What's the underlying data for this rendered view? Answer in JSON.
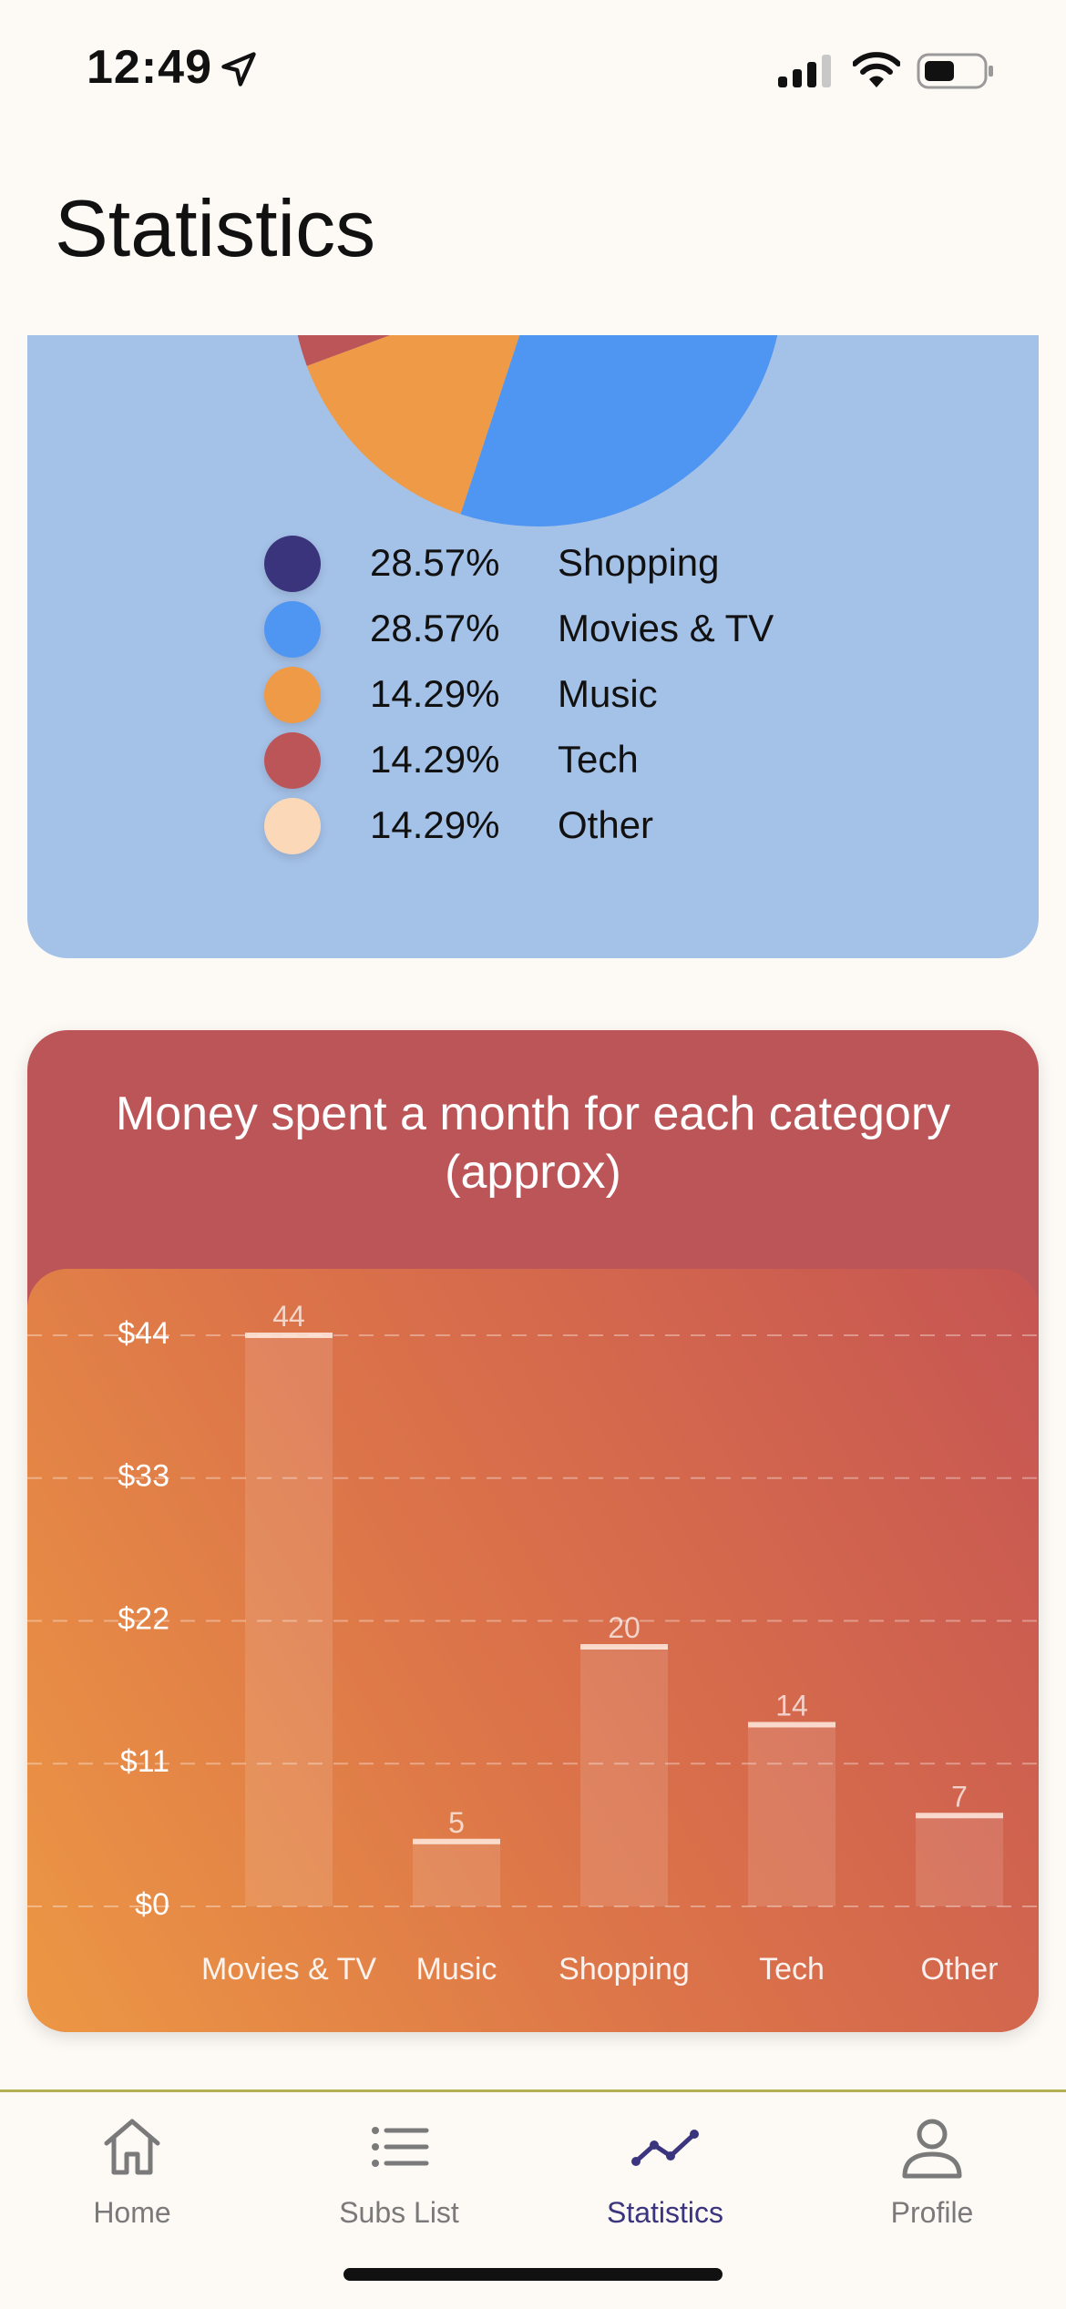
{
  "status_bar": {
    "time": "12:49",
    "location_icon": "location-arrow-icon",
    "signal_icon": "cellular-signal-icon",
    "wifi_icon": "wifi-icon",
    "battery_icon": "battery-icon"
  },
  "header": {
    "title": "Statistics"
  },
  "pie_legend": [
    {
      "percent": "28.57%",
      "label": "Shopping",
      "color": "#3a347c"
    },
    {
      "percent": "28.57%",
      "label": "Movies & TV",
      "color": "#4f95f2"
    },
    {
      "percent": "14.29%",
      "label": "Music",
      "color": "#ee9a46"
    },
    {
      "percent": "14.29%",
      "label": "Tech",
      "color": "#bc5558"
    },
    {
      "percent": "14.29%",
      "label": "Other",
      "color": "#fbd8b8"
    }
  ],
  "pie_chart": {
    "type": "pie",
    "slices": [
      {
        "label": "Shopping",
        "percent": 28.57,
        "color": "#3a347c"
      },
      {
        "label": "Movies & TV",
        "percent": 28.57,
        "color": "#4f95f2"
      },
      {
        "label": "Music",
        "percent": 14.29,
        "color": "#ee9a46"
      },
      {
        "label": "Tech",
        "percent": 14.29,
        "color": "#bc5558"
      },
      {
        "label": "Other",
        "percent": 14.29,
        "color": "#fbd8b8"
      }
    ]
  },
  "bar_card": {
    "title": "Money spent a month for each category (approx)"
  },
  "chart_data": {
    "type": "bar",
    "title": "Money spent a month for each category (approx)",
    "categories": [
      "Movies & TV",
      "Music",
      "Shopping",
      "Tech",
      "Other"
    ],
    "values": [
      44,
      5,
      20,
      14,
      7
    ],
    "data_labels": [
      "44",
      "5",
      "20",
      "14",
      "7"
    ],
    "y_ticks": [
      "$0",
      "$11",
      "$22",
      "$33",
      "$44"
    ],
    "y_tick_values": [
      0,
      11,
      22,
      33,
      44
    ],
    "ylim": [
      0,
      44
    ],
    "xlabel": "",
    "ylabel": "",
    "grid": true
  },
  "tab_bar": {
    "tabs": [
      {
        "label": "Home",
        "icon": "house-icon",
        "active": false
      },
      {
        "label": "Subs List",
        "icon": "list-icon",
        "active": false
      },
      {
        "label": "Statistics",
        "icon": "line-chart-icon",
        "active": true
      },
      {
        "label": "Profile",
        "icon": "person-icon",
        "active": false
      }
    ],
    "active_color": "#3a357e",
    "inactive_color": "#7a7a7a"
  }
}
